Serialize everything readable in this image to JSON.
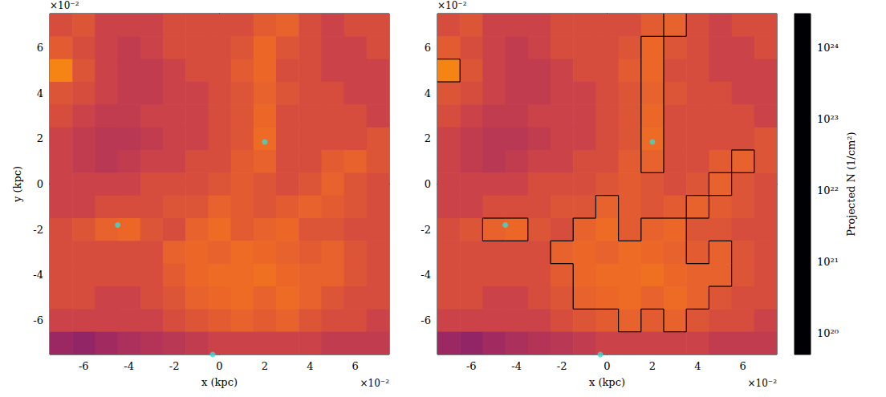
{
  "chart_data": [
    {
      "type": "heatmap",
      "xlabel": "x (kpc)",
      "ylabel": "y (kpc)",
      "x_offset": "×10⁻²",
      "y_offset": "×10⁻²",
      "xlim": [
        -7.5,
        7.5
      ],
      "ylim": [
        -7.5,
        7.5
      ],
      "xticks": [
        -6,
        -4,
        -2,
        0,
        2,
        4,
        6
      ],
      "yticks": [
        -6,
        -4,
        -2,
        0,
        2,
        4,
        6
      ],
      "x": [
        -7,
        -6,
        -5,
        -4,
        -3,
        -2,
        -1,
        0,
        1,
        2,
        3,
        4,
        5,
        6,
        7
      ],
      "y": [
        7,
        6,
        5,
        4,
        3,
        2,
        1,
        0,
        -1,
        -2,
        -3,
        -4,
        -5,
        -6,
        -7
      ],
      "cells": [
        [
          3e+22,
          4e+22,
          2e+22,
          2e+22,
          2e+22,
          3e+22,
          3e+22,
          3e+22,
          3e+22,
          5e+22,
          6e+22,
          3e+22,
          2e+22,
          3e+22,
          3e+22
        ],
        [
          5e+22,
          3e+22,
          2e+22,
          1.5e+22,
          2e+22,
          3e+22,
          3e+22,
          3e+22,
          4e+22,
          7e+22,
          4e+22,
          3e+22,
          2e+22,
          2e+22,
          3e+22
        ],
        [
          1.5e+23,
          4e+22,
          2e+22,
          1.5e+22,
          1.5e+22,
          2e+22,
          3e+22,
          3e+22,
          5e+22,
          7e+22,
          3e+22,
          3e+22,
          2e+22,
          2e+22,
          2e+22
        ],
        [
          4e+22,
          3e+22,
          2e+22,
          1.5e+22,
          1.5e+22,
          2e+22,
          2e+22,
          3e+22,
          4e+22,
          6e+22,
          4e+22,
          3e+22,
          3e+22,
          2e+22,
          2e+22
        ],
        [
          3e+22,
          2e+22,
          1.5e+22,
          1.5e+22,
          2e+22,
          2e+22,
          2e+22,
          3e+22,
          4e+22,
          7e+22,
          3e+22,
          3e+22,
          3e+22,
          3e+22,
          2e+22
        ],
        [
          2e+22,
          1.5e+22,
          1.2e+22,
          1.2e+22,
          1.5e+22,
          2e+22,
          2e+22,
          3e+22,
          4e+22,
          8e+22,
          3e+22,
          3e+22,
          3e+22,
          3e+22,
          4e+22
        ],
        [
          2e+22,
          1.5e+22,
          1.2e+22,
          1.5e+22,
          2e+22,
          2e+22,
          3e+22,
          3e+22,
          5e+22,
          6e+22,
          3e+22,
          3e+22,
          5e+22,
          6e+22,
          4e+22
        ],
        [
          2e+22,
          2e+22,
          2e+22,
          2e+22,
          3e+22,
          3e+22,
          3e+22,
          4e+22,
          5e+22,
          4e+22,
          3e+22,
          4e+22,
          6e+22,
          4e+22,
          3e+22
        ],
        [
          2e+22,
          2e+22,
          3e+22,
          3e+22,
          3e+22,
          4e+22,
          4e+22,
          6e+22,
          5e+22,
          4e+22,
          5e+22,
          6e+22,
          5e+22,
          4e+22,
          3e+22
        ],
        [
          3e+22,
          4e+22,
          6e+22,
          7e+22,
          4e+22,
          3e+22,
          6e+22,
          8e+22,
          5e+22,
          6e+22,
          7e+22,
          4e+22,
          4e+22,
          3e+22,
          3e+22
        ],
        [
          3e+22,
          3e+22,
          3e+22,
          3e+22,
          3e+22,
          6e+22,
          7e+22,
          6e+22,
          8e+22,
          7e+22,
          6e+22,
          5e+22,
          6e+22,
          4e+22,
          3e+22
        ],
        [
          3e+22,
          3e+22,
          3e+22,
          3e+22,
          3e+22,
          5e+22,
          7e+22,
          8e+22,
          8e+22,
          9e+22,
          7e+22,
          6e+22,
          6e+22,
          4e+22,
          3e+22
        ],
        [
          3e+22,
          3e+22,
          2e+22,
          2e+22,
          3e+22,
          4e+22,
          6e+22,
          7e+22,
          8e+22,
          6e+22,
          8e+22,
          6e+22,
          4e+22,
          3e+22,
          3e+22
        ],
        [
          2e+22,
          2e+22,
          2e+22,
          2e+22,
          2e+22,
          3e+22,
          4e+22,
          5e+22,
          6e+22,
          5e+22,
          6e+22,
          4e+22,
          3e+22,
          3e+22,
          2e+22
        ],
        [
          5e+21,
          4e+21,
          6e+21,
          8e+21,
          1e+22,
          1.2e+22,
          1.5e+22,
          2e+22,
          2e+22,
          2e+22,
          2e+22,
          2e+22,
          1.5e+22,
          1.5e+22,
          1.5e+22
        ]
      ],
      "points": {
        "x": [
          2,
          -4.5,
          -0.3
        ],
        "y": [
          1.85,
          -1.8,
          -7.5
        ],
        "color": "#3fd9d0"
      }
    },
    {
      "type": "heatmap",
      "xlabel": "x (kpc)",
      "x_offset": "×10⁻²",
      "y_offset": "×10⁻²",
      "xlim": [
        -7.5,
        7.5
      ],
      "ylim": [
        -7.5,
        7.5
      ],
      "xticks": [
        -6,
        -4,
        -2,
        0,
        2,
        4,
        6
      ],
      "yticks": [
        -6,
        -4,
        -2,
        0,
        2,
        4,
        6
      ],
      "x": [
        -7,
        -6,
        -5,
        -4,
        -3,
        -2,
        -1,
        0,
        1,
        2,
        3,
        4,
        5,
        6,
        7
      ],
      "y": [
        7,
        6,
        5,
        4,
        3,
        2,
        1,
        0,
        -1,
        -2,
        -3,
        -4,
        -5,
        -6,
        -7
      ],
      "cells": [
        [
          3e+22,
          4e+22,
          2e+22,
          2e+22,
          2e+22,
          3e+22,
          3e+22,
          3e+22,
          3e+22,
          5e+22,
          6e+22,
          3e+22,
          2e+22,
          3e+22,
          3e+22
        ],
        [
          5e+22,
          3e+22,
          2e+22,
          1.5e+22,
          2e+22,
          3e+22,
          3e+22,
          3e+22,
          4e+22,
          7e+22,
          4e+22,
          3e+22,
          2e+22,
          2e+22,
          3e+22
        ],
        [
          1.5e+23,
          4e+22,
          2e+22,
          1.5e+22,
          1.5e+22,
          2e+22,
          3e+22,
          3e+22,
          5e+22,
          7e+22,
          3e+22,
          3e+22,
          2e+22,
          2e+22,
          2e+22
        ],
        [
          4e+22,
          3e+22,
          2e+22,
          1.5e+22,
          1.5e+22,
          2e+22,
          2e+22,
          3e+22,
          4e+22,
          6e+22,
          4e+22,
          3e+22,
          3e+22,
          2e+22,
          2e+22
        ],
        [
          3e+22,
          2e+22,
          1.5e+22,
          1.5e+22,
          2e+22,
          2e+22,
          2e+22,
          3e+22,
          4e+22,
          7e+22,
          3e+22,
          3e+22,
          3e+22,
          3e+22,
          2e+22
        ],
        [
          2e+22,
          1.5e+22,
          1.2e+22,
          1.2e+22,
          1.5e+22,
          2e+22,
          2e+22,
          3e+22,
          4e+22,
          8e+22,
          3e+22,
          3e+22,
          3e+22,
          3e+22,
          4e+22
        ],
        [
          2e+22,
          1.5e+22,
          1.2e+22,
          1.5e+22,
          2e+22,
          2e+22,
          3e+22,
          3e+22,
          5e+22,
          6e+22,
          3e+22,
          3e+22,
          5e+22,
          6e+22,
          4e+22
        ],
        [
          2e+22,
          2e+22,
          2e+22,
          2e+22,
          3e+22,
          3e+22,
          3e+22,
          4e+22,
          5e+22,
          4e+22,
          3e+22,
          4e+22,
          6e+22,
          4e+22,
          3e+22
        ],
        [
          2e+22,
          2e+22,
          3e+22,
          3e+22,
          3e+22,
          4e+22,
          4e+22,
          6e+22,
          5e+22,
          4e+22,
          5e+22,
          6e+22,
          5e+22,
          4e+22,
          3e+22
        ],
        [
          3e+22,
          4e+22,
          6e+22,
          7e+22,
          4e+22,
          3e+22,
          6e+22,
          8e+22,
          5e+22,
          6e+22,
          7e+22,
          4e+22,
          4e+22,
          3e+22,
          3e+22
        ],
        [
          3e+22,
          3e+22,
          3e+22,
          3e+22,
          3e+22,
          6e+22,
          7e+22,
          6e+22,
          8e+22,
          7e+22,
          6e+22,
          5e+22,
          6e+22,
          4e+22,
          3e+22
        ],
        [
          3e+22,
          3e+22,
          3e+22,
          3e+22,
          3e+22,
          5e+22,
          7e+22,
          8e+22,
          8e+22,
          9e+22,
          7e+22,
          6e+22,
          6e+22,
          4e+22,
          3e+22
        ],
        [
          3e+22,
          3e+22,
          2e+22,
          2e+22,
          3e+22,
          4e+22,
          6e+22,
          7e+22,
          8e+22,
          6e+22,
          8e+22,
          6e+22,
          4e+22,
          3e+22,
          3e+22
        ],
        [
          2e+22,
          2e+22,
          2e+22,
          2e+22,
          2e+22,
          3e+22,
          4e+22,
          5e+22,
          6e+22,
          5e+22,
          6e+22,
          4e+22,
          3e+22,
          3e+22,
          2e+22
        ],
        [
          5e+21,
          4e+21,
          6e+21,
          8e+21,
          1e+22,
          1.2e+22,
          1.5e+22,
          2e+22,
          2e+22,
          2e+22,
          2e+22,
          2e+22,
          1.5e+22,
          1.5e+22,
          1.5e+22
        ]
      ],
      "contour_level": 6e+22,
      "points": {
        "x": [
          2,
          -4.5,
          -0.3
        ],
        "y": [
          1.85,
          -1.8,
          -7.5
        ],
        "color": "#3fd9d0"
      },
      "colorbar": {
        "label": "Projected N (1/cm²)",
        "log": true,
        "clim": [
          5e+19,
          3e+24
        ],
        "ticks": [
          {
            "value": 1e+20,
            "label": "10²⁰"
          },
          {
            "value": 1e+21,
            "label": "10²¹"
          },
          {
            "value": 1e+22,
            "label": "10²²"
          },
          {
            "value": 1e+23,
            "label": "10²³"
          },
          {
            "value": 1e+24,
            "label": "10²⁴"
          }
        ]
      }
    }
  ]
}
